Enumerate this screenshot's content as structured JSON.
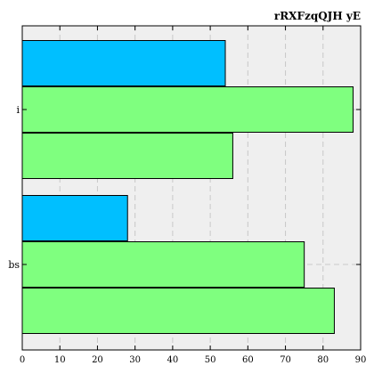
{
  "chart_data": {
    "type": "bar",
    "orientation": "horizontal",
    "title": "rRXFzqQJH yE",
    "xlabel": "",
    "ylabel": "",
    "categories": [
      "i",
      "bs"
    ],
    "series": [
      {
        "values": [
          54,
          28
        ]
      },
      {
        "values": [
          88,
          75
        ]
      },
      {
        "values": [
          56,
          83
        ]
      }
    ],
    "xlim": [
      0,
      90
    ],
    "xticks": [
      0,
      10,
      20,
      30,
      40,
      50,
      60,
      70,
      80,
      90
    ],
    "grid": true,
    "legend": "none",
    "colors": {
      "series_1": "#00bfff",
      "series_2": "#7fff7f",
      "background": "#efefef",
      "grid": "#c8c8c8"
    }
  }
}
